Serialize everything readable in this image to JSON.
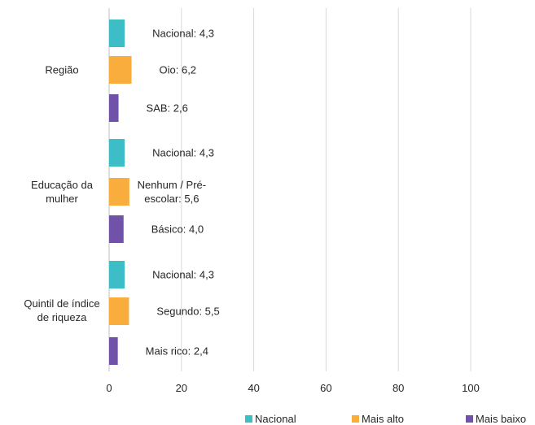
{
  "chart_data": {
    "type": "bar",
    "orientation": "horizontal",
    "xlim": [
      0,
      100
    ],
    "xticks": [
      "0",
      "20",
      "40",
      "60",
      "80",
      "100"
    ],
    "grid": true,
    "legend_position": "bottom-right",
    "colors": {
      "Nacional": "#3dbdc6",
      "Mais alto": "#f8ad3d",
      "Mais baixo": "#7052a8"
    },
    "legend": [
      "Nacional",
      "Mais alto",
      "Mais baixo"
    ],
    "groups": [
      {
        "category": [
          "Região"
        ],
        "bars": [
          {
            "series": "Nacional",
            "value": 4.3,
            "label": [
              "Nacional: 4,3"
            ]
          },
          {
            "series": "Mais alto",
            "value": 6.2,
            "label": [
              "Oio: 6,2"
            ]
          },
          {
            "series": "Mais baixo",
            "value": 2.6,
            "label": [
              "SAB: 2,6"
            ]
          }
        ]
      },
      {
        "category": [
          "Educação da",
          "mulher"
        ],
        "bars": [
          {
            "series": "Nacional",
            "value": 4.3,
            "label": [
              "Nacional: 4,3"
            ]
          },
          {
            "series": "Mais alto",
            "value": 5.6,
            "label": [
              "Nenhum / Pré-",
              "escolar: 5,6"
            ]
          },
          {
            "series": "Mais baixo",
            "value": 4.0,
            "label": [
              "Básico: 4,0"
            ]
          }
        ]
      },
      {
        "category": [
          "Quintil de índice",
          "de riqueza"
        ],
        "bars": [
          {
            "series": "Nacional",
            "value": 4.3,
            "label": [
              "Nacional: 4,3"
            ]
          },
          {
            "series": "Mais alto",
            "value": 5.5,
            "label": [
              "Segundo: 5,5"
            ]
          },
          {
            "series": "Mais baixo",
            "value": 2.4,
            "label": [
              "Mais rico: 2,4"
            ]
          }
        ]
      }
    ]
  }
}
